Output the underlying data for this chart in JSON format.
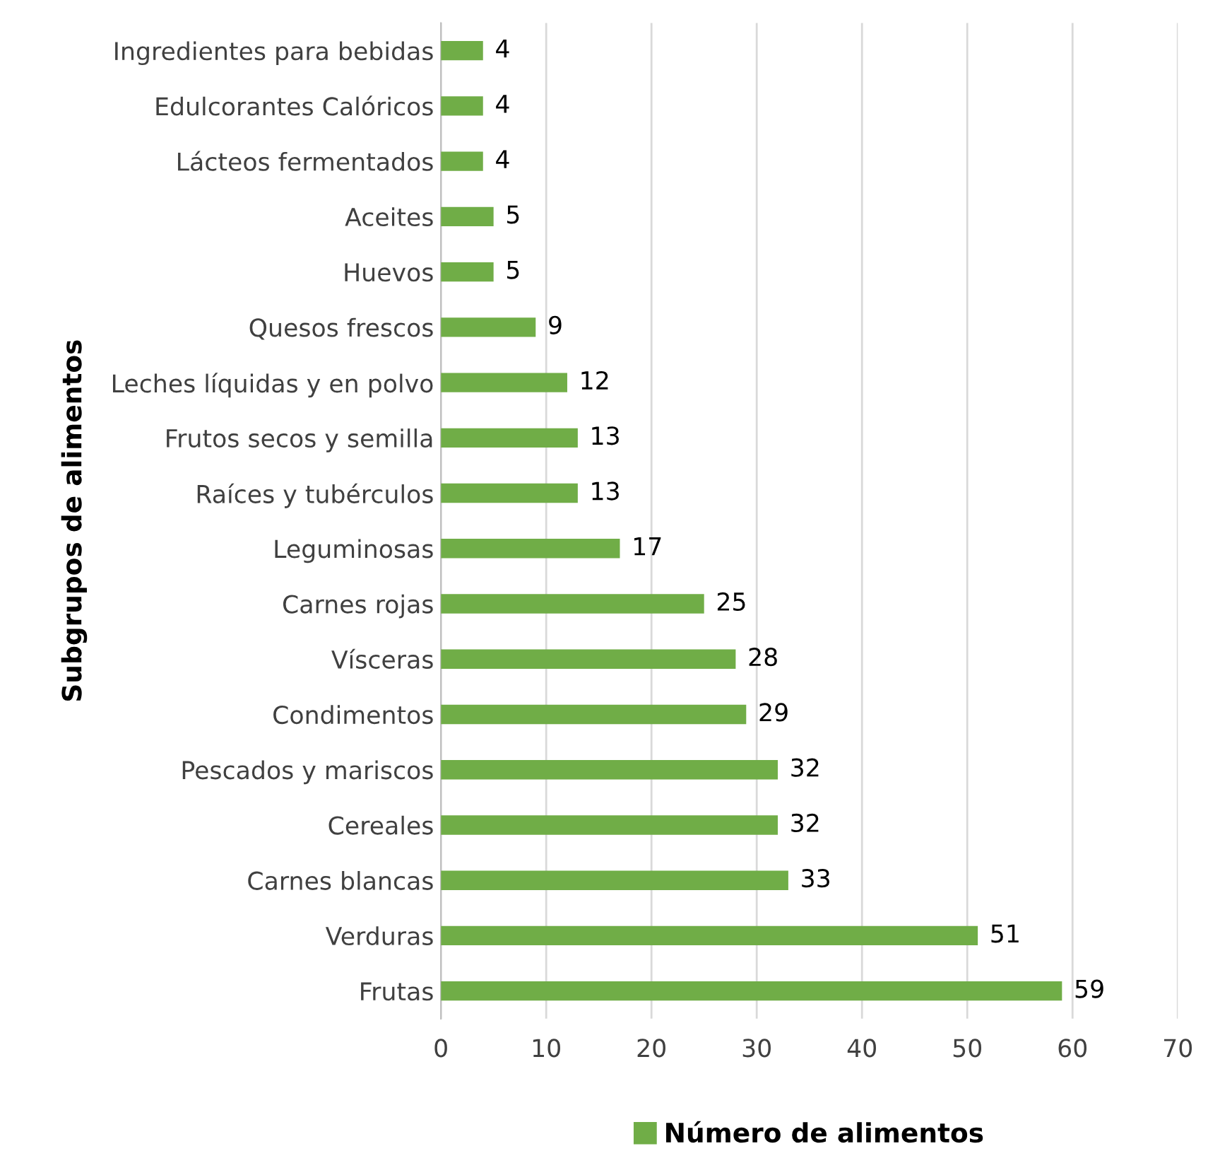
{
  "chart_data": {
    "type": "bar",
    "orientation": "horizontal",
    "ylabel": "Subgrupos de alimentos",
    "categories": [
      "Ingredientes para bebidas",
      "Edulcorantes Calóricos",
      "Lácteos fermentados",
      "Aceites",
      "Huevos",
      "Quesos frescos",
      "Leches líquidas y en polvo",
      "Frutos secos y semilla",
      "Raíces y tubérculos",
      "Leguminosas",
      "Carnes rojas",
      "Vísceras",
      "Condimentos",
      "Pescados y mariscos",
      "Cereales",
      "Carnes blancas",
      "Verduras",
      "Frutas"
    ],
    "series": [
      {
        "name": "Número de alimentos",
        "color": "#70ad47",
        "values": [
          4,
          4,
          4,
          5,
          5,
          9,
          12,
          13,
          13,
          17,
          25,
          28,
          29,
          32,
          32,
          33,
          51,
          59
        ]
      }
    ],
    "xlim": [
      0,
      70
    ],
    "xticks": [
      0,
      10,
      20,
      30,
      40,
      50,
      60,
      70
    ],
    "grid": "x",
    "legend": "bottom",
    "data_labels": true
  }
}
